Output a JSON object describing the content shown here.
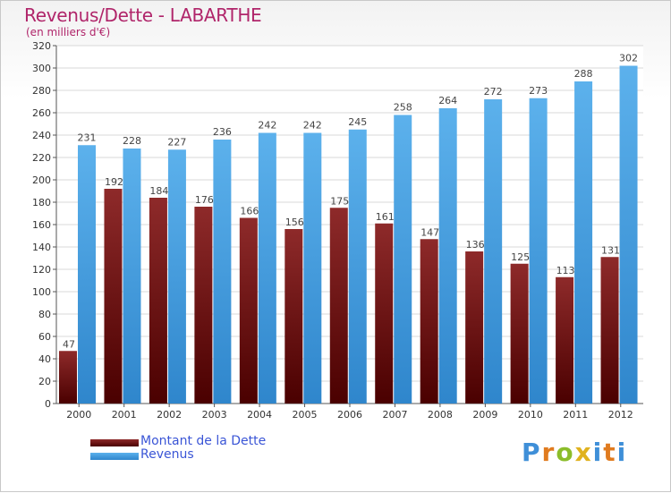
{
  "title": "Revenus/Dette - LABARTHE",
  "subtitle": "(en milliers d'€)",
  "logo": {
    "text": "Proxiti",
    "letters": [
      "P",
      "r",
      "o",
      "x",
      "i",
      "t",
      "i"
    ]
  },
  "colors": {
    "title": "#b0256a",
    "debt_bar": "#7a1616",
    "revenue_bar": "#3f9ddf",
    "legend_text": "#3a55d6"
  },
  "chart_data": {
    "type": "bar",
    "title": "Revenus/Dette - LABARTHE",
    "subtitle": "(en milliers d'€)",
    "categories": [
      "2000",
      "2001",
      "2002",
      "2003",
      "2004",
      "2005",
      "2006",
      "2007",
      "2008",
      "2009",
      "2010",
      "2011",
      "2012"
    ],
    "series": [
      {
        "name": "Montant de la Dette",
        "values": [
          47,
          192,
          184,
          176,
          166,
          156,
          175,
          161,
          147,
          136,
          125,
          113,
          131
        ]
      },
      {
        "name": "Revenus",
        "values": [
          231,
          228,
          227,
          236,
          242,
          242,
          245,
          258,
          264,
          272,
          273,
          288,
          302
        ]
      }
    ],
    "ylim": [
      0,
      320
    ],
    "yticks": [
      0,
      20,
      40,
      60,
      80,
      100,
      120,
      140,
      160,
      180,
      200,
      220,
      240,
      260,
      280,
      300,
      320
    ],
    "grid": true,
    "legend_position": "bottom-left",
    "data_labels": true
  }
}
